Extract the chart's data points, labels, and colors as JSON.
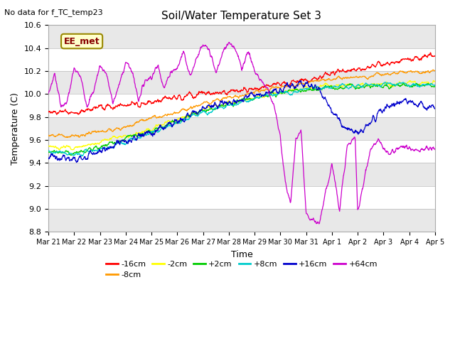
{
  "title": "Soil/Water Temperature Set 3",
  "ylabel": "Temperature (C)",
  "xlabel": "Time",
  "no_data_text": "No data for f_TC_temp23",
  "annotation_text": "EE_met",
  "ylim": [
    8.8,
    10.6
  ],
  "yticks": [
    8.8,
    9.0,
    9.2,
    9.4,
    9.6,
    9.8,
    10.0,
    10.2,
    10.4,
    10.6
  ],
  "xtick_labels": [
    "Mar 21",
    "Mar 22",
    "Mar 23",
    "Mar 24",
    "Mar 25",
    "Mar 26",
    "Mar 27",
    "Mar 28",
    "Mar 29",
    "Mar 30",
    "Mar 31",
    "Apr 1",
    "Apr 2",
    "Apr 3",
    "Apr 4",
    "Apr 5"
  ],
  "series_labels": [
    "-16cm",
    "-8cm",
    "-2cm",
    "+2cm",
    "+8cm",
    "+16cm",
    "+64cm"
  ],
  "series_colors": [
    "#ff0000",
    "#ff9900",
    "#ffff00",
    "#00cc00",
    "#00cccc",
    "#0000cc",
    "#cc00cc"
  ],
  "bg_color": "#ffffff",
  "plot_bg_alternating": [
    "#e8e8e8",
    "#ffffff"
  ],
  "grid_color": "#bbbbbb"
}
